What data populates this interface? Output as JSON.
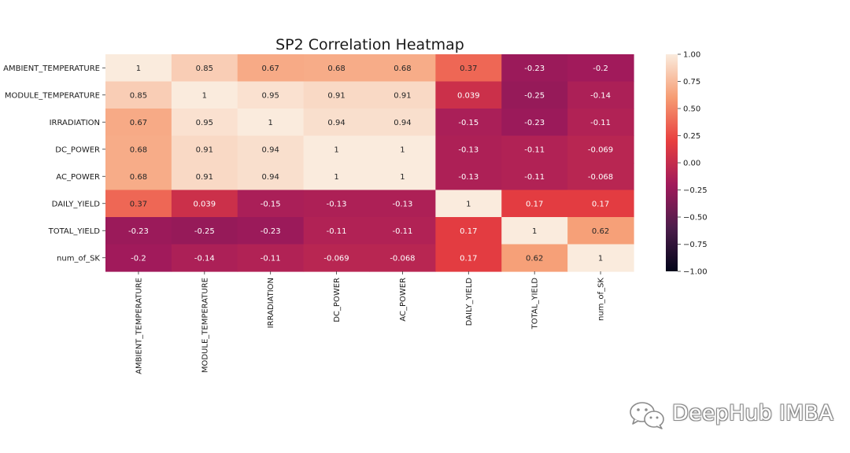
{
  "chart_data": {
    "type": "heatmap",
    "title": "SP2 Correlation Heatmap",
    "row_labels": [
      "AMBIENT_TEMPERATURE",
      "MODULE_TEMPERATURE",
      "IRRADIATION",
      "DC_POWER",
      "AC_POWER",
      "DAILY_YIELD",
      "TOTAL_YIELD",
      "num_of_SK"
    ],
    "col_labels": [
      "AMBIENT_TEMPERATURE",
      "MODULE_TEMPERATURE",
      "IRRADIATION",
      "DC_POWER",
      "AC_POWER",
      "DAILY_YIELD",
      "TOTAL_YIELD",
      "num_of_SK"
    ],
    "values": [
      [
        1,
        0.85,
        0.67,
        0.68,
        0.68,
        0.37,
        -0.23,
        -0.2
      ],
      [
        0.85,
        1,
        0.95,
        0.91,
        0.91,
        0.039,
        -0.25,
        -0.14
      ],
      [
        0.67,
        0.95,
        1,
        0.94,
        0.94,
        -0.15,
        -0.23,
        -0.11
      ],
      [
        0.68,
        0.91,
        0.94,
        1,
        1,
        -0.13,
        -0.11,
        -0.069
      ],
      [
        0.68,
        0.91,
        0.94,
        1,
        1,
        -0.13,
        -0.11,
        -0.068
      ],
      [
        0.37,
        0.039,
        -0.15,
        -0.13,
        -0.13,
        1,
        0.17,
        0.17
      ],
      [
        -0.23,
        -0.25,
        -0.23,
        -0.11,
        -0.11,
        0.17,
        1,
        0.62
      ],
      [
        -0.2,
        -0.14,
        -0.11,
        -0.069,
        -0.068,
        0.17,
        0.62,
        1
      ]
    ],
    "vmin": -1.0,
    "vmax": 1.0,
    "colorbar_ticks": [
      "1.00",
      "0.75",
      "0.50",
      "0.25",
      "0.00",
      "−0.25",
      "−0.50",
      "−0.75",
      "−1.00"
    ],
    "colorbar_tick_values": [
      1.0,
      0.75,
      0.5,
      0.25,
      0.0,
      -0.25,
      -0.5,
      -0.75,
      -1.0
    ],
    "colormap": "rocket",
    "colormap_stops": [
      "#03051a",
      "#4c1d4b",
      "#a11a5b",
      "#e83f3f",
      "#f69c73",
      "#faebdd"
    ]
  },
  "watermark": {
    "text": "DeepHub IMBA",
    "icon": "wechat-icon"
  }
}
